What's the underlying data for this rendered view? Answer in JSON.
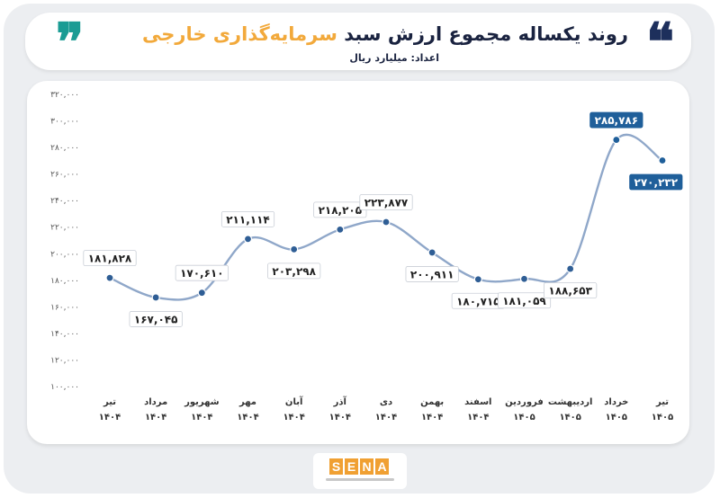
{
  "header": {
    "title_main": "روند یکساله مجموع ارزش سبد",
    "title_highlight": "سرمایه‌گذاری خارجی",
    "unit": "اعداد: میلیارد ریال",
    "quote_open": "❞",
    "quote_close": "❝"
  },
  "logo": {
    "letters": [
      "S",
      "E",
      "N",
      "A"
    ]
  },
  "colors": {
    "line": "#8fa7c9",
    "point": "#2f5e95",
    "highlight": "#1f5f9a",
    "title_accent": "#f2a93b",
    "teal": "#1a9c94",
    "navy": "#1d2f5c"
  },
  "chart_data": {
    "type": "line",
    "categories": [
      {
        "month": "تیر",
        "year": "۱۴۰۴"
      },
      {
        "month": "مرداد",
        "year": "۱۴۰۴"
      },
      {
        "month": "شهریور",
        "year": "۱۴۰۴"
      },
      {
        "month": "مهر",
        "year": "۱۴۰۴"
      },
      {
        "month": "آبان",
        "year": "۱۴۰۴"
      },
      {
        "month": "آذر",
        "year": "۱۴۰۴"
      },
      {
        "month": "دی",
        "year": "۱۴۰۴"
      },
      {
        "month": "بهمن",
        "year": "۱۴۰۴"
      },
      {
        "month": "اسفند",
        "year": "۱۴۰۴"
      },
      {
        "month": "فروردین",
        "year": "۱۴۰۵"
      },
      {
        "month": "اردیبهشت",
        "year": "۱۴۰۵"
      },
      {
        "month": "خرداد",
        "year": "۱۴۰۵"
      },
      {
        "month": "تیر",
        "year": "۱۴۰۵"
      }
    ],
    "values": [
      181828,
      167045,
      170610,
      211114,
      203298,
      218205,
      223877,
      200911,
      180715,
      181059,
      188653,
      285786,
      270232
    ],
    "labels": [
      "۱۸۱,۸۲۸",
      "۱۶۷,۰۴۵",
      "۱۷۰,۶۱۰",
      "۲۱۱,۱۱۴",
      "۲۰۳,۲۹۸",
      "۲۱۸,۲۰۵",
      "۲۲۳,۸۷۷",
      "۲۰۰,۹۱۱",
      "۱۸۰,۷۱۵",
      "۱۸۱,۰۵۹",
      "۱۸۸,۶۵۳",
      "۲۸۵,۷۸۶",
      "۲۷۰,۲۳۲"
    ],
    "highlighted": [
      11,
      12
    ],
    "ylim": [
      100000,
      320000
    ],
    "yticks": [
      100000,
      120000,
      140000,
      160000,
      180000,
      200000,
      220000,
      240000,
      260000,
      280000,
      300000,
      320000
    ],
    "ytick_labels": [
      "۱۰۰,۰۰۰",
      "۱۲۰,۰۰۰",
      "۱۴۰,۰۰۰",
      "۱۶۰,۰۰۰",
      "۱۸۰,۰۰۰",
      "۲۰۰,۰۰۰",
      "۲۲۰,۰۰۰",
      "۲۴۰,۰۰۰",
      "۲۶۰,۰۰۰",
      "۲۸۰,۰۰۰",
      "۳۰۰,۰۰۰",
      "۳۲۰,۰۰۰"
    ],
    "grid": false,
    "legend": "none"
  }
}
